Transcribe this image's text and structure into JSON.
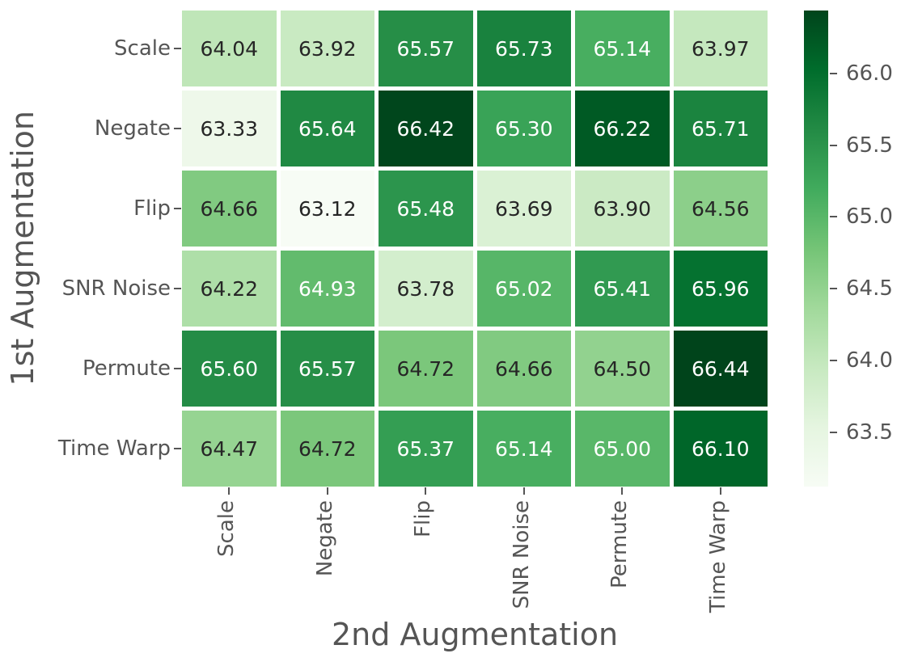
{
  "chart_data": {
    "type": "heatmap",
    "title": "",
    "xlabel": "2nd Augmentation",
    "ylabel": "1st Augmentation",
    "x_categories": [
      "Scale",
      "Negate",
      "Flip",
      "SNR Noise",
      "Permute",
      "Time Warp"
    ],
    "y_categories": [
      "Scale",
      "Negate",
      "Flip",
      "SNR Noise",
      "Permute",
      "Time Warp"
    ],
    "values": [
      [
        64.04,
        63.92,
        65.57,
        65.73,
        65.14,
        63.97
      ],
      [
        63.33,
        65.64,
        66.42,
        65.3,
        66.22,
        65.71
      ],
      [
        64.66,
        63.12,
        65.48,
        63.69,
        63.9,
        64.56
      ],
      [
        64.22,
        64.93,
        63.78,
        65.02,
        65.41,
        65.96
      ],
      [
        65.6,
        65.57,
        64.72,
        64.66,
        64.5,
        66.44
      ],
      [
        64.47,
        64.72,
        65.37,
        65.14,
        65.0,
        66.1
      ]
    ],
    "value_format_decimals": 2,
    "vmin": 63.12,
    "vmax": 66.44,
    "colormap": "Greens",
    "colormap_stops": [
      {
        "t": 0.0,
        "color": "#f7fcf5"
      },
      {
        "t": 0.125,
        "color": "#e5f5e0"
      },
      {
        "t": 0.25,
        "color": "#c7e9c0"
      },
      {
        "t": 0.375,
        "color": "#a1d99b"
      },
      {
        "t": 0.5,
        "color": "#74c476"
      },
      {
        "t": 0.625,
        "color": "#41ab5d"
      },
      {
        "t": 0.75,
        "color": "#238b45"
      },
      {
        "t": 0.875,
        "color": "#006d2c"
      },
      {
        "t": 1.0,
        "color": "#00441b"
      }
    ],
    "colorbar_tick_labels": [
      "66.0",
      "65.5",
      "65.0",
      "64.5",
      "64.0",
      "63.5"
    ],
    "colorbar_position": "right",
    "grid": false,
    "legend": "none"
  },
  "colors": {
    "background": "#ffffff",
    "cell_gap": "#ffffff",
    "annotation_dark": "#262626",
    "annotation_light": "#ffffff",
    "tick_label": "#555555",
    "axis_label": "#555555",
    "tick_mark": "#555555"
  }
}
